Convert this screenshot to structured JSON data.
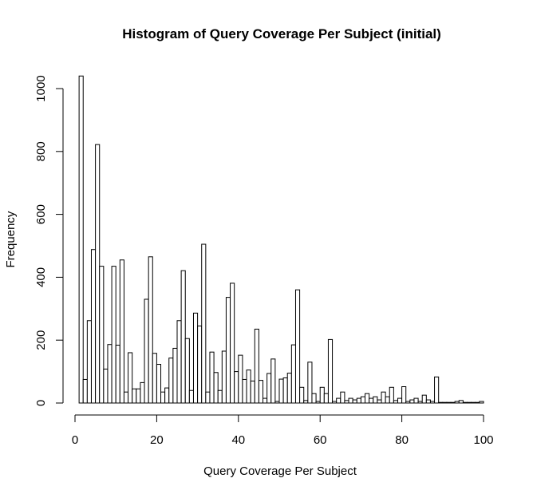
{
  "chart_data": {
    "type": "bar",
    "title": "Histogram of Query Coverage Per Subject (initial)",
    "xlabel": "Query Coverage Per Subject",
    "ylabel": "Frequency",
    "xlim": [
      0,
      100
    ],
    "ylim": [
      0,
      1040
    ],
    "x_ticks": [
      "0",
      "20",
      "40",
      "60",
      "80",
      "100"
    ],
    "y_ticks": [
      "0",
      "200",
      "400",
      "600",
      "800",
      "1000"
    ],
    "grid": false,
    "legend": "none",
    "bin_width": 1,
    "bin_starts": [
      1,
      2,
      3,
      4,
      5,
      6,
      7,
      8,
      9,
      10,
      11,
      12,
      13,
      14,
      15,
      16,
      17,
      18,
      19,
      20,
      21,
      22,
      23,
      24,
      25,
      26,
      27,
      28,
      29,
      30,
      31,
      32,
      33,
      34,
      35,
      36,
      37,
      38,
      39,
      40,
      41,
      42,
      43,
      44,
      45,
      46,
      47,
      48,
      49,
      50,
      51,
      52,
      53,
      54,
      55,
      56,
      57,
      58,
      59,
      60,
      61,
      62,
      63,
      64,
      65,
      66,
      67,
      68,
      69,
      70,
      71,
      72,
      73,
      74,
      75,
      76,
      77,
      78,
      79,
      80,
      81,
      82,
      83,
      84,
      85,
      86,
      87,
      88,
      89,
      90,
      91,
      92,
      93,
      94,
      95,
      96,
      97,
      98,
      99
    ],
    "values": [
      1040,
      75,
      262,
      488,
      822,
      435,
      108,
      186,
      435,
      184,
      455,
      35,
      160,
      45,
      45,
      65,
      330,
      465,
      158,
      123,
      35,
      48,
      143,
      174,
      262,
      421,
      205,
      40,
      286,
      245,
      505,
      35,
      162,
      97,
      40,
      165,
      336,
      381,
      100,
      152,
      75,
      105,
      70,
      235,
      72,
      15,
      94,
      140,
      5,
      76,
      80,
      95,
      185,
      360,
      50,
      8,
      130,
      30,
      5,
      50,
      30,
      202,
      5,
      15,
      35,
      8,
      15,
      10,
      15,
      20,
      30,
      15,
      20,
      10,
      35,
      20,
      50,
      8,
      15,
      52,
      5,
      10,
      15,
      5,
      25,
      10,
      5,
      83,
      2,
      2,
      2,
      2,
      5,
      8,
      2,
      2,
      2,
      2,
      5
    ]
  }
}
